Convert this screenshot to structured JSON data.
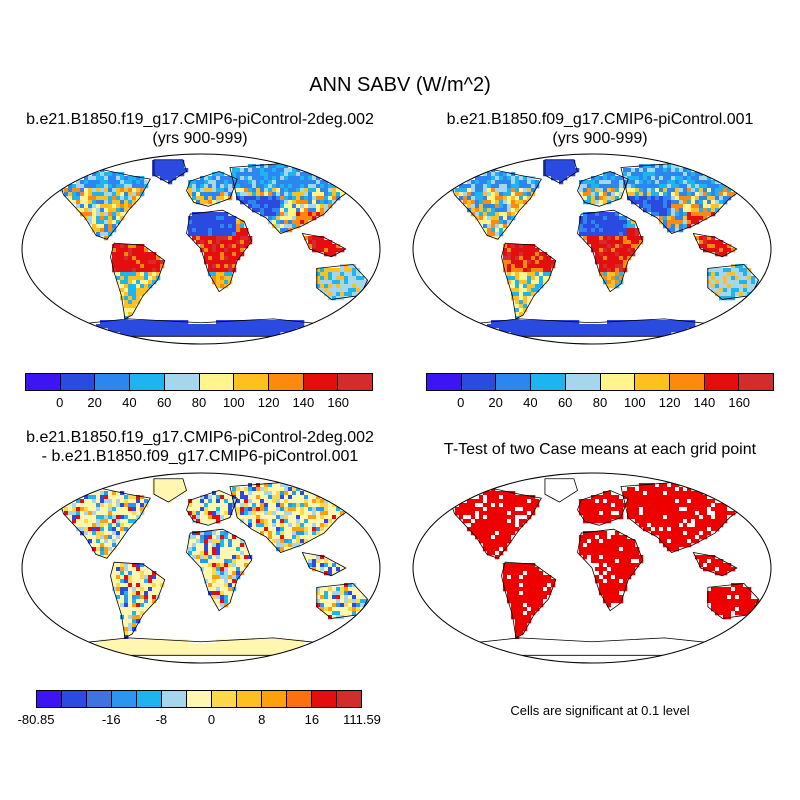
{
  "title": "ANN SABV (W/m^2)",
  "panels": {
    "top_left": {
      "title_line1": "b.e21.B1850.f19_g17.CMIP6-piControl-2deg.002",
      "title_line2": "(yrs 900-999)"
    },
    "top_right": {
      "title_line1": "b.e21.B1850.f09_g17.CMIP6-piControl.001",
      "title_line2": "(yrs 900-999)"
    },
    "bottom_left": {
      "title_line1": "b.e21.B1850.f19_g17.CMIP6-piControl-2deg.002",
      "title_line2": "- b.e21.B1850.f09_g17.CMIP6-piControl.001"
    },
    "bottom_right": {
      "title_line1": "T-Test of two Case means at each grid point",
      "note": "Cells are significant at 0.1 level"
    }
  },
  "colorbar_abs": {
    "colors": [
      "#3d14f4",
      "#2b4ae0",
      "#2b86f0",
      "#1eb4f0",
      "#a6d6ec",
      "#fff58c",
      "#fec01e",
      "#fd8a0e",
      "#e40e0e",
      "#d22c2c"
    ],
    "labels": [
      "0",
      "20",
      "40",
      "60",
      "80",
      "100",
      "120",
      "140",
      "160"
    ]
  },
  "colorbar_diff": {
    "colors": [
      "#3d14f4",
      "#2b4ae0",
      "#3d74e0",
      "#2b96f0",
      "#1eb4f0",
      "#a6d6ec",
      "#fff6b0",
      "#fdd84a",
      "#fec01e",
      "#fda00e",
      "#fd7010",
      "#e40e0e",
      "#d22c2c"
    ],
    "labels": [
      "-80.85",
      "-16",
      "-8",
      "0",
      "8",
      "16",
      "111.59"
    ]
  },
  "map_colors": {
    "ocean": "#ffffff",
    "antarctica_abs": "#2b4ae0",
    "desert": "#2b4ae0",
    "boreal": "#2b86f0",
    "temperate": "#fec01e",
    "tropical": "#e40e0e",
    "savanna": "#fd8a0e",
    "diff_land": "#fff6b0",
    "diff_warm": "#fd8a0e",
    "diff_cool": "#2b96f0",
    "ttest_land": "#ee0000"
  }
}
